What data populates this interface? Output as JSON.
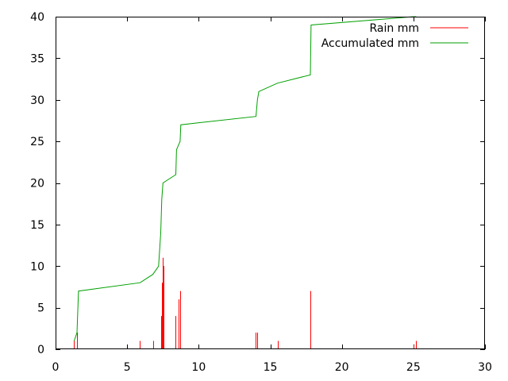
{
  "chart_data": {
    "type": "line",
    "title": "",
    "xlabel": "",
    "ylabel": "",
    "xlim": [
      0,
      30
    ],
    "ylim": [
      0,
      40
    ],
    "x_ticks": [
      0,
      5,
      10,
      15,
      20,
      25,
      30
    ],
    "y_ticks": [
      0,
      5,
      10,
      15,
      20,
      25,
      30,
      35,
      40
    ],
    "x_tick_labels": [
      "0",
      "5",
      "10",
      "15",
      "20",
      "25",
      "30"
    ],
    "y_tick_labels": [
      "0",
      "5",
      "10",
      "15",
      "20",
      "25",
      "30",
      "35",
      "40"
    ],
    "grid": false,
    "legend_position": "top-right",
    "series": [
      {
        "name": "Rain mm",
        "style": "impulses",
        "color": "#ff0000",
        "points": [
          {
            "x": 1.3,
            "y": 1
          },
          {
            "x": 1.5,
            "y": 2
          },
          {
            "x": 5.9,
            "y": 1
          },
          {
            "x": 6.8,
            "y": 1
          },
          {
            "x": 7.35,
            "y": 4
          },
          {
            "x": 7.42,
            "y": 8
          },
          {
            "x": 7.5,
            "y": 11
          },
          {
            "x": 7.55,
            "y": 10
          },
          {
            "x": 8.4,
            "y": 4
          },
          {
            "x": 8.6,
            "y": 6
          },
          {
            "x": 8.7,
            "y": 7
          },
          {
            "x": 14.0,
            "y": 2
          },
          {
            "x": 14.1,
            "y": 2
          },
          {
            "x": 15.5,
            "y": 1
          },
          {
            "x": 17.8,
            "y": 7
          },
          {
            "x": 25.0,
            "y": 0.5
          },
          {
            "x": 25.2,
            "y": 1
          }
        ]
      },
      {
        "name": "Accumulated mm",
        "style": "lines",
        "color": "#00a000",
        "points": [
          {
            "x": 1.3,
            "y": 1
          },
          {
            "x": 1.5,
            "y": 2
          },
          {
            "x": 1.6,
            "y": 7
          },
          {
            "x": 5.9,
            "y": 8
          },
          {
            "x": 6.8,
            "y": 9
          },
          {
            "x": 7.2,
            "y": 10
          },
          {
            "x": 7.35,
            "y": 14
          },
          {
            "x": 7.42,
            "y": 18
          },
          {
            "x": 7.5,
            "y": 20
          },
          {
            "x": 8.4,
            "y": 21
          },
          {
            "x": 8.45,
            "y": 24
          },
          {
            "x": 8.7,
            "y": 25
          },
          {
            "x": 8.75,
            "y": 27
          },
          {
            "x": 14.0,
            "y": 28
          },
          {
            "x": 14.1,
            "y": 30
          },
          {
            "x": 14.2,
            "y": 31
          },
          {
            "x": 15.5,
            "y": 32
          },
          {
            "x": 17.8,
            "y": 33
          },
          {
            "x": 17.85,
            "y": 39
          },
          {
            "x": 25.0,
            "y": 40
          },
          {
            "x": 25.2,
            "y": 40
          }
        ]
      }
    ]
  }
}
